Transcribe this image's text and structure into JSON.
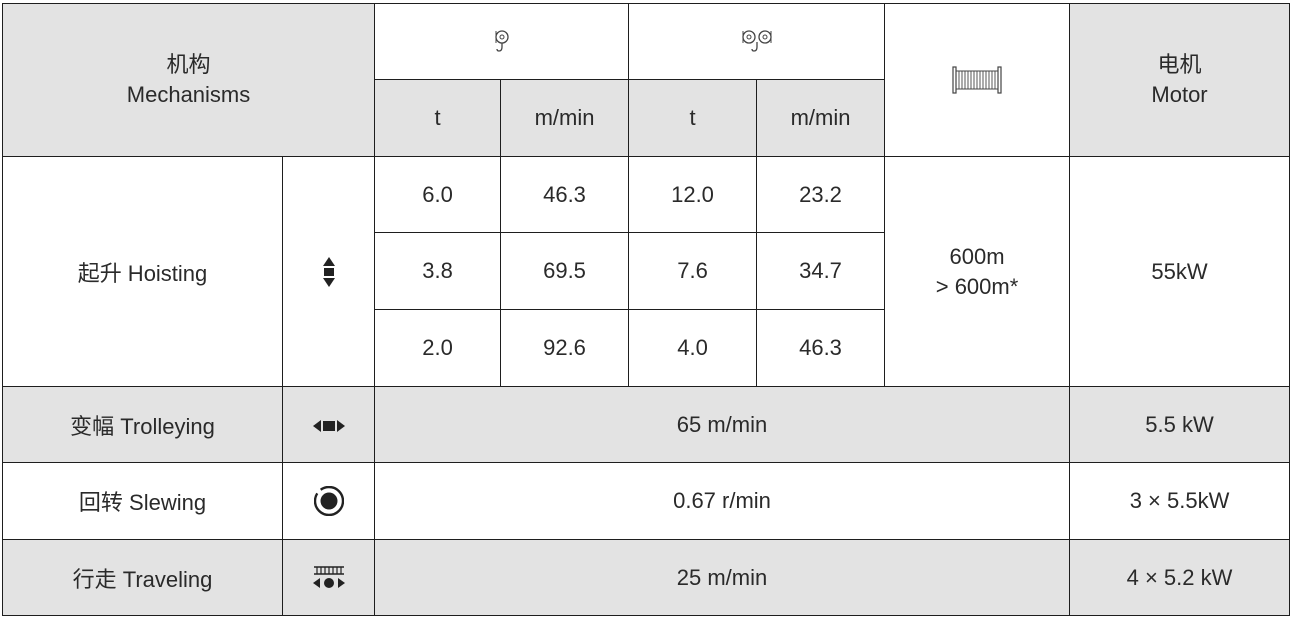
{
  "header": {
    "mechanisms_cn": "机构",
    "mechanisms_en": "Mechanisms",
    "motor_cn": "电机",
    "motor_en": "Motor",
    "single_hook_icon": "single-reeving-hook-icon",
    "double_hook_icon": "double-reeving-hook-icon",
    "drum_icon": "rope-drum-icon",
    "unit_t_1": "t",
    "unit_speed_1": "m/min",
    "unit_t_2": "t",
    "unit_speed_2": "m/min"
  },
  "hoisting": {
    "label": "起升 Hoisting",
    "icon": "hoist-up-down-arrows-icon",
    "rows": [
      {
        "load1": "6.0",
        "speed1": "46.3",
        "load2": "12.0",
        "speed2": "23.2"
      },
      {
        "load1": "3.8",
        "speed1": "69.5",
        "load2": "7.6",
        "speed2": "34.7"
      },
      {
        "load1": "2.0",
        "speed1": "92.6",
        "load2": "4.0",
        "speed2": "46.3"
      }
    ],
    "rope_line1": "600m",
    "rope_line2": "> 600m*",
    "motor": "55kW"
  },
  "trolleying": {
    "label": "变幅 Trolleying",
    "icon": "trolley-left-right-arrows-icon",
    "speed": "65 m/min",
    "motor": "5.5 kW"
  },
  "slewing": {
    "label": "回转 Slewing",
    "icon": "slewing-circle-icon",
    "speed": "0.67 r/min",
    "motor": "3 × 5.5kW"
  },
  "traveling": {
    "label": "行走 Traveling",
    "icon": "rail-travel-icon",
    "speed": "25 m/min",
    "motor": "4 × 5.2 kW"
  },
  "colors": {
    "header_shade": "#e3e3e3",
    "border": "#1e1e1e",
    "text": "#2a2a2a"
  }
}
